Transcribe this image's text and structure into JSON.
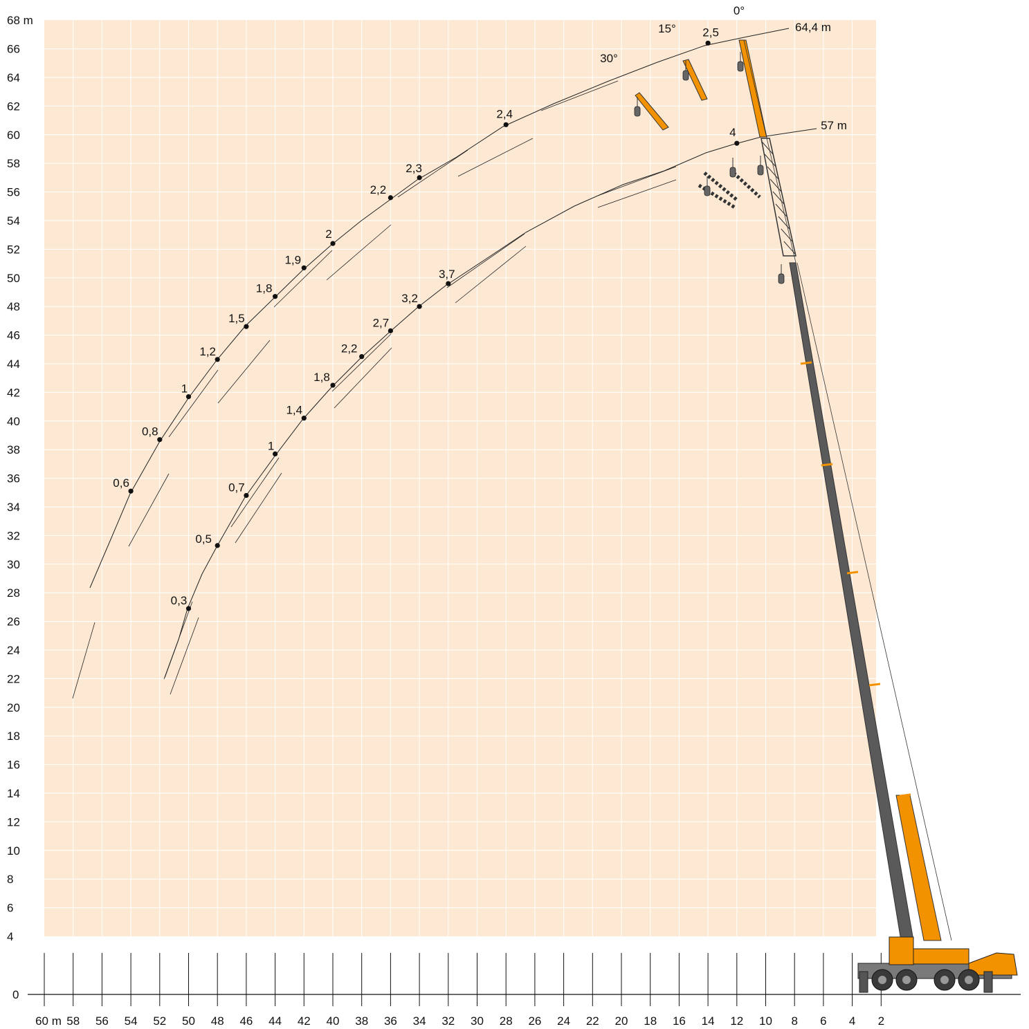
{
  "colors": {
    "panel": "#fde9d3",
    "grid": "#ffffff",
    "curve": "#222222",
    "boom_dark": "#5a5a5a",
    "boom_accent": "#f39200",
    "carrier": "#7a7a7a",
    "cab": "#f39200"
  },
  "chart_data": {
    "type": "line",
    "title": "",
    "xlabel": "",
    "ylabel": "",
    "x_unit": "m",
    "y_unit": "m",
    "xlim": [
      60,
      1
    ],
    "ylim": [
      4,
      68
    ],
    "x_ticks": [
      "60 m",
      "58",
      "56",
      "54",
      "52",
      "50",
      "48",
      "46",
      "44",
      "42",
      "40",
      "38",
      "36",
      "34",
      "32",
      "30",
      "28",
      "26",
      "24",
      "22",
      "20",
      "18",
      "16",
      "14",
      "12",
      "10",
      "8",
      "6",
      "4",
      "2"
    ],
    "y_ticks": [
      "4",
      "6",
      "8",
      "10",
      "12",
      "14",
      "16",
      "18",
      "20",
      "22",
      "24",
      "26",
      "28",
      "30",
      "32",
      "34",
      "36",
      "38",
      "40",
      "42",
      "44",
      "46",
      "48",
      "50",
      "52",
      "54",
      "56",
      "58",
      "60",
      "62",
      "64",
      "66",
      "68 m"
    ],
    "y_zero_label": "0",
    "grid": true,
    "series": [
      {
        "name": "64,4 m",
        "points": [
          {
            "x": 54,
            "y": 35.1,
            "label": "0,6"
          },
          {
            "x": 52,
            "y": 38.7,
            "label": "0,8"
          },
          {
            "x": 50,
            "y": 41.7,
            "label": "1"
          },
          {
            "x": 48,
            "y": 44.3,
            "label": "1,2"
          },
          {
            "x": 46,
            "y": 46.6,
            "label": "1,5"
          },
          {
            "x": 44,
            "y": 48.7,
            "label": "1,8"
          },
          {
            "x": 42,
            "y": 50.7,
            "label": "1,9"
          },
          {
            "x": 40,
            "y": 52.4,
            "label": "2"
          },
          {
            "x": 36,
            "y": 55.6,
            "label": "2,2"
          },
          {
            "x": 34,
            "y": 57.0,
            "label": "2,3"
          },
          {
            "x": 28,
            "y": 60.7,
            "label": "2,4"
          },
          {
            "x": 14,
            "y": 66.4,
            "label": "2,5"
          }
        ]
      },
      {
        "name": "57 m",
        "points": [
          {
            "x": 50,
            "y": 26.9,
            "label": "0,3"
          },
          {
            "x": 48,
            "y": 31.3,
            "label": "0,5"
          },
          {
            "x": 46,
            "y": 34.8,
            "label": "0,7"
          },
          {
            "x": 44,
            "y": 37.7,
            "label": "1"
          },
          {
            "x": 42,
            "y": 40.2,
            "label": "1,4"
          },
          {
            "x": 40,
            "y": 42.5,
            "label": "1,8"
          },
          {
            "x": 38,
            "y": 44.5,
            "label": "2,2"
          },
          {
            "x": 36,
            "y": 46.3,
            "label": "2,7"
          },
          {
            "x": 34,
            "y": 48.0,
            "label": "3,2"
          },
          {
            "x": 32,
            "y": 49.6,
            "label": "3,7"
          },
          {
            "x": 12,
            "y": 59.4,
            "label": "4"
          }
        ]
      }
    ],
    "annotations": [
      "0°",
      "15°",
      "30°"
    ]
  }
}
